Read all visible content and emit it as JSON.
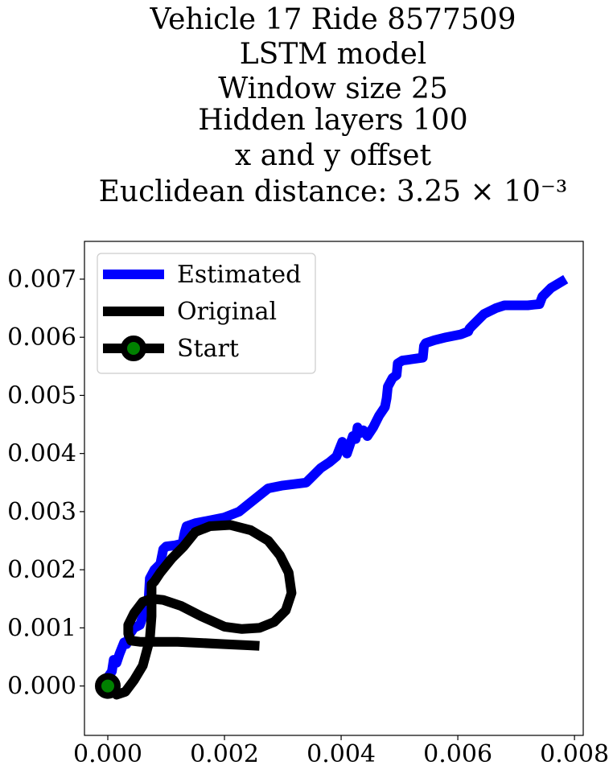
{
  "chart_data": {
    "type": "line",
    "title_lines": [
      "Vehicle 17 Ride 8577509",
      "LSTM model",
      "Window size 25",
      "Hidden layers 100",
      "x and y offset",
      "Euclidean distance: 3.25 × 10⁻³"
    ],
    "xlabel": "",
    "ylabel": "",
    "xlim": [
      -0.0004,
      0.00815
    ],
    "ylim": [
      -0.00085,
      0.00765
    ],
    "x_ticks": [
      "0.000",
      "0.002",
      "0.004",
      "0.006",
      "0.008"
    ],
    "y_ticks": [
      "0.000",
      "0.001",
      "0.002",
      "0.003",
      "0.004",
      "0.005",
      "0.006",
      "0.007"
    ],
    "grid": false,
    "legend_position": "upper-left",
    "series": [
      {
        "name": "Estimated",
        "color": "#0000ff",
        "x": [
          0.0,
          7e-05,
          0.0001,
          0.00015,
          0.0002,
          0.00028,
          0.00032,
          0.00038,
          0.00045,
          0.00055,
          0.00062,
          0.00068,
          0.0007,
          0.00072,
          0.0008,
          0.0009,
          0.00095,
          0.001,
          0.00115,
          0.00128,
          0.00132,
          0.00135,
          0.0015,
          0.00175,
          0.002,
          0.00225,
          0.0025,
          0.00275,
          0.003,
          0.00325,
          0.0034,
          0.0035,
          0.00365,
          0.0038,
          0.00392,
          0.00398,
          0.00402,
          0.00405,
          0.0041,
          0.0042,
          0.00425,
          0.00428,
          0.00432,
          0.00438,
          0.00445,
          0.00455,
          0.00465,
          0.00475,
          0.00478,
          0.0048,
          0.00488,
          0.00495,
          0.00497,
          0.00505,
          0.0052,
          0.0054,
          0.00542,
          0.00545,
          0.0056,
          0.0058,
          0.00605,
          0.00618,
          0.0062,
          0.00625,
          0.0063,
          0.00645,
          0.00665,
          0.0068,
          0.007,
          0.0072,
          0.0073,
          0.0074,
          0.00745,
          0.0076,
          0.00785
        ],
        "y": [
          0.00015,
          0.00025,
          0.00045,
          0.0004,
          0.00055,
          0.00075,
          0.00072,
          0.0009,
          0.001,
          0.00105,
          0.00125,
          0.00135,
          0.0015,
          0.00185,
          0.002,
          0.0021,
          0.00235,
          0.0024,
          0.00242,
          0.00245,
          0.00265,
          0.00275,
          0.0028,
          0.00285,
          0.0029,
          0.003,
          0.0032,
          0.0034,
          0.00345,
          0.00348,
          0.0035,
          0.0036,
          0.00375,
          0.00385,
          0.00395,
          0.0041,
          0.0042,
          0.00415,
          0.004,
          0.0043,
          0.00425,
          0.00445,
          0.00435,
          0.0044,
          0.0043,
          0.00445,
          0.00465,
          0.0048,
          0.00495,
          0.00515,
          0.0053,
          0.00535,
          0.00555,
          0.0056,
          0.00562,
          0.00565,
          0.00585,
          0.0059,
          0.00595,
          0.006,
          0.00605,
          0.0061,
          0.00615,
          0.0062,
          0.00625,
          0.0064,
          0.0065,
          0.00655,
          0.00655,
          0.00655,
          0.00656,
          0.00657,
          0.0067,
          0.00685,
          0.007
        ]
      },
      {
        "name": "Original",
        "color": "#000000",
        "x": [
          0.0,
          0.00015,
          0.0003,
          0.00045,
          0.0006,
          0.00072,
          0.00075,
          0.00075,
          0.00075,
          0.0008,
          0.0009,
          0.0011,
          0.0013,
          0.0015,
          0.00175,
          0.0021,
          0.00245,
          0.00275,
          0.00295,
          0.0031,
          0.00315,
          0.00305,
          0.00285,
          0.0026,
          0.0023,
          0.002,
          0.0016,
          0.00125,
          0.00095,
          0.00075,
          0.0006,
          0.00045,
          0.00035,
          0.00035,
          0.0004,
          0.00055,
          0.0008,
          0.0012,
          0.0016,
          0.002,
          0.0024,
          0.0026
        ],
        "y": [
          0.0,
          -0.00015,
          -0.0001,
          0.0001,
          0.00035,
          0.0008,
          0.0012,
          0.0015,
          0.00175,
          0.0018,
          0.00195,
          0.0022,
          0.0024,
          0.00265,
          0.00275,
          0.00277,
          0.00268,
          0.0025,
          0.00225,
          0.00195,
          0.0016,
          0.0013,
          0.0011,
          0.001,
          0.00098,
          0.00102,
          0.0012,
          0.00138,
          0.00148,
          0.0015,
          0.00145,
          0.00125,
          0.00105,
          0.0009,
          0.00078,
          0.00076,
          0.00076,
          0.00076,
          0.00074,
          0.00072,
          0.0007,
          0.00069
        ]
      },
      {
        "name": "Start",
        "color": "#000000",
        "marker_face_color": "#008000",
        "x": [
          0.0
        ],
        "y": [
          0.0
        ]
      }
    ]
  }
}
